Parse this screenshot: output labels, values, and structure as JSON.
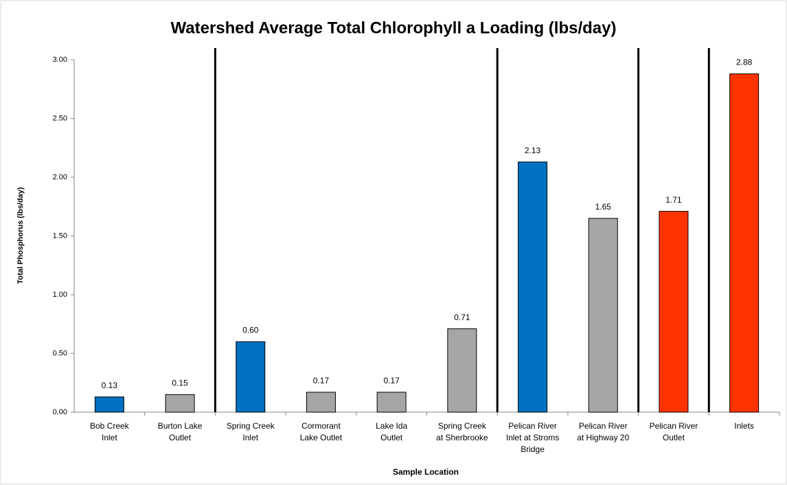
{
  "chart_data": {
    "type": "bar",
    "title": "Watershed Average Total Chlorophyll a Loading (lbs/day)",
    "x_label": "Sample Location",
    "y_label": "Total Phosphorus  (lbs/day)",
    "categories": [
      "Bob Creek\nInlet",
      "Burton Lake\nOutlet",
      "Spring Creek\nInlet",
      "Cormorant\nLake Outlet",
      "Lake Ida\nOutlet",
      "Spring Creek\nat Sherbrooke",
      "Pelican River\nInlet at Stroms\nBridge",
      "Pelican River\nat Highway 20",
      "Pelican River\nOutlet",
      "Inlets"
    ],
    "values": [
      0.13,
      0.15,
      0.6,
      0.17,
      0.17,
      0.71,
      2.13,
      1.65,
      1.71,
      2.88
    ],
    "value_labels": [
      "0.13",
      "0.15",
      "0.60",
      "0.17",
      "0.17",
      "0.71",
      "2.13",
      "1.65",
      "1.71",
      "2.88"
    ],
    "colors": [
      "#0070c0",
      "#a6a6a6",
      "#0070c0",
      "#a6a6a6",
      "#a6a6a6",
      "#a6a6a6",
      "#0070c0",
      "#a6a6a6",
      "#ff3300",
      "#ff3300"
    ],
    "ylim": [
      0,
      3
    ],
    "yticks": [
      {
        "value": 0,
        "label": "0.00"
      },
      {
        "value": 0.5,
        "label": "0.50"
      },
      {
        "value": 1,
        "label": "1.00"
      },
      {
        "value": 1.5,
        "label": "1.50"
      },
      {
        "value": 2,
        "label": "2.00"
      },
      {
        "value": 2.5,
        "label": "2.50"
      },
      {
        "value": 3,
        "label": "3.00"
      }
    ],
    "grid": false
  }
}
